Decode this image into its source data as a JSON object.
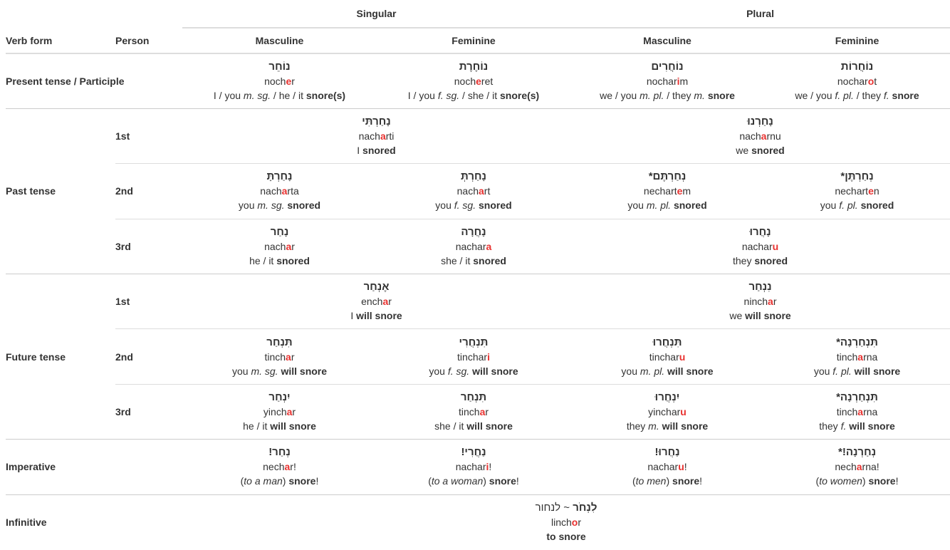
{
  "headers": {
    "verb_form": "Verb form",
    "person": "Person",
    "singular": "Singular",
    "plural": "Plural",
    "masculine": "Masculine",
    "feminine": "Feminine"
  },
  "rows": {
    "present": {
      "label": "Present tense / Participle",
      "cells": [
        {
          "heb": "נוֹחֵר",
          "tr_pre": "noch",
          "tr_acc": "e",
          "tr_post": "r",
          "g1": "I / you ",
          "g1i": "m. sg.",
          "g2": " / he / it ",
          "g2b": "snore(s)",
          "g3": "",
          "g3b": ""
        },
        {
          "heb": "נוֹחֶרֶת",
          "tr_pre": "noch",
          "tr_acc": "e",
          "tr_post": "ret",
          "g1": "I / you ",
          "g1i": "f. sg.",
          "g2": " / she / it ",
          "g2b": "snore(s)",
          "g3": "",
          "g3b": ""
        },
        {
          "heb": "נוֹחֲרִים",
          "tr_pre": "nochar",
          "tr_acc": "i",
          "tr_post": "m",
          "g1": "we / you ",
          "g1i": "m. pl.",
          "g2": " / they ",
          "g2b": "",
          "g3": "m.",
          "g3b": "snore"
        },
        {
          "heb": "נוֹחֲרוֹת",
          "tr_pre": "nochar",
          "tr_acc": "o",
          "tr_post": "t",
          "g1": "we / you ",
          "g1i": "f. pl.",
          "g2": " / they ",
          "g2b": "",
          "g3": "f.",
          "g3b": "snore"
        }
      ]
    },
    "past": {
      "label": "Past tense",
      "p1": {
        "person": "1st",
        "sg": {
          "heb": "נָחַרְתִּי",
          "tr_pre": "nach",
          "tr_acc": "a",
          "tr_post": "rti",
          "g_pre": "I ",
          "g_b": "snored"
        },
        "pl": {
          "heb": "נָחַרְנוּ",
          "tr_pre": "nach",
          "tr_acc": "a",
          "tr_post": "rnu",
          "g_pre": "we ",
          "g_b": "snored"
        }
      },
      "p2": {
        "person": "2nd",
        "cells": [
          {
            "heb": "נָחַרְתָּ",
            "tr_pre": "nach",
            "tr_acc": "a",
            "tr_post": "rta",
            "g_pre": "you ",
            "g_i": "m. sg.",
            "g_b": "snored"
          },
          {
            "heb": "נָחַרְתְּ",
            "tr_pre": "nach",
            "tr_acc": "a",
            "tr_post": "rt",
            "g_pre": "you ",
            "g_i": "f. sg.",
            "g_b": "snored"
          },
          {
            "heb": "נְחַרְתֶּם*",
            "tr_pre": "nechart",
            "tr_acc": "e",
            "tr_post": "m",
            "g_pre": "you ",
            "g_i": "m. pl.",
            "g_b": "snored"
          },
          {
            "heb": "נְחַרְתֶּן*",
            "tr_pre": "nechart",
            "tr_acc": "e",
            "tr_post": "n",
            "g_pre": "you ",
            "g_i": "f. pl.",
            "g_b": "snored"
          }
        ]
      },
      "p3": {
        "person": "3rd",
        "cells": [
          {
            "heb": "נָחַר",
            "tr_pre": "nach",
            "tr_acc": "a",
            "tr_post": "r",
            "g_pre": "he / it ",
            "g_b": "snored"
          },
          {
            "heb": "נָחֲרָה",
            "tr_pre": "nachar",
            "tr_acc": "a",
            "tr_post": "",
            "g_pre": "she / it ",
            "g_b": "snored"
          }
        ],
        "pl": {
          "heb": "נָחֲרוּ",
          "tr_pre": "nachar",
          "tr_acc": "u",
          "tr_post": "",
          "g_pre": "they ",
          "g_b": "snored"
        }
      }
    },
    "future": {
      "label": "Future tense",
      "p1": {
        "person": "1st",
        "sg": {
          "heb": "אֶנְחַר",
          "tr_pre": "ench",
          "tr_acc": "a",
          "tr_post": "r",
          "g_pre": "I ",
          "g_b": "will snore"
        },
        "pl": {
          "heb": "נִנְחַר",
          "tr_pre": "ninch",
          "tr_acc": "a",
          "tr_post": "r",
          "g_pre": "we ",
          "g_b": "will snore"
        }
      },
      "p2": {
        "person": "2nd",
        "cells": [
          {
            "heb": "תִּנְחַר",
            "tr_pre": "tinch",
            "tr_acc": "a",
            "tr_post": "r",
            "g_pre": "you ",
            "g_i": "m. sg.",
            "g_b": "will snore"
          },
          {
            "heb": "תִּנְחֲרִי",
            "tr_pre": "tinchar",
            "tr_acc": "i",
            "tr_post": "",
            "g_pre": "you ",
            "g_i": "f. sg.",
            "g_b": "will snore"
          },
          {
            "heb": "תִּנְחֲרוּ",
            "tr_pre": "tinchar",
            "tr_acc": "u",
            "tr_post": "",
            "g_pre": "you ",
            "g_i": "m. pl.",
            "g_b": "will snore"
          },
          {
            "heb": "תִּנְחַרְנָה*",
            "tr_pre": "tinch",
            "tr_acc": "a",
            "tr_post": "rna",
            "g_pre": "you ",
            "g_i": "f. pl.",
            "g_b": "will snore"
          }
        ]
      },
      "p3": {
        "person": "3rd",
        "cells": [
          {
            "heb": "יִנְחַר",
            "tr_pre": "yinch",
            "tr_acc": "a",
            "tr_post": "r",
            "g_pre": "he / it ",
            "g_i": "",
            "g_b": "will snore"
          },
          {
            "heb": "תִּנְחַר",
            "tr_pre": "tinch",
            "tr_acc": "a",
            "tr_post": "r",
            "g_pre": "she / it ",
            "g_i": "",
            "g_b": "will snore"
          },
          {
            "heb": "יִנְחֲרוּ",
            "tr_pre": "yinchar",
            "tr_acc": "u",
            "tr_post": "",
            "g_pre": "they ",
            "g_i": "m.",
            "g_b": "will snore"
          },
          {
            "heb": "תִּנְחַרְנָה*",
            "tr_pre": "tinch",
            "tr_acc": "a",
            "tr_post": "rna",
            "g_pre": "they ",
            "g_i": "f.",
            "g_b": "will snore"
          }
        ]
      }
    },
    "imperative": {
      "label": "Imperative",
      "cells": [
        {
          "heb": "נְחַר!",
          "tr_pre": "nech",
          "tr_acc": "a",
          "tr_post": "r!",
          "g_open": "(",
          "g_i": "to a man",
          "g_close": ") ",
          "g_b": "snore",
          "g_end": "!"
        },
        {
          "heb": "נַחֲרִי!",
          "tr_pre": "nachar",
          "tr_acc": "i",
          "tr_post": "!",
          "g_open": "(",
          "g_i": "to a woman",
          "g_close": ") ",
          "g_b": "snore",
          "g_end": "!"
        },
        {
          "heb": "נַחֲרוּ!",
          "tr_pre": "nachar",
          "tr_acc": "u",
          "tr_post": "!",
          "g_open": "(",
          "g_i": "to men",
          "g_close": ") ",
          "g_b": "snore",
          "g_end": "!"
        },
        {
          "heb": "נְחַרְנָה!*",
          "tr_pre": "nech",
          "tr_acc": "a",
          "tr_post": "rna!",
          "g_open": "(",
          "g_i": "to women",
          "g_close": ") ",
          "g_b": "snore",
          "g_end": "!"
        }
      ]
    },
    "infinitive": {
      "label": "Infinitive",
      "heb_main": "לִנְחֹר",
      "heb_alt": " ~ לנחור",
      "tr_pre": "linch",
      "tr_acc": "o",
      "tr_post": "r",
      "g_b": "to snore"
    }
  },
  "colors": {
    "accent": "#e8312f",
    "text": "#333333",
    "border": "#dddddd"
  }
}
